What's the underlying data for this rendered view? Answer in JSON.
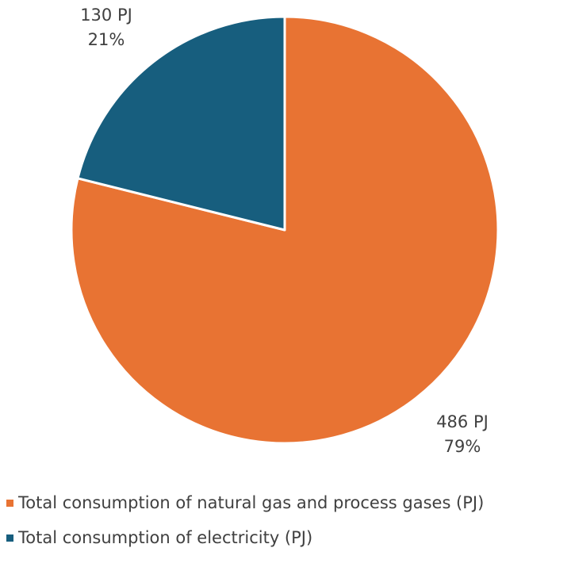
{
  "chart_data": {
    "type": "pie",
    "slices": [
      {
        "name": "Total consumption of natural gas and process gases (PJ)",
        "value": 486,
        "value_label": "486 PJ",
        "percent_label": "79%",
        "color": "#E87333"
      },
      {
        "name": "Total consumption of electricity (PJ)",
        "value": 130,
        "value_label": "130 PJ",
        "percent_label": "21%",
        "color": "#175E7E"
      }
    ],
    "start_angle": "12 o'clock, clockwise",
    "legend": "bottom-left",
    "legend_items": [
      {
        "label": "Total consumption of natural gas and process gases (PJ)",
        "color": "#E87333"
      },
      {
        "label": "Total consumption of electricity (PJ)",
        "color": "#175E7E"
      }
    ]
  }
}
